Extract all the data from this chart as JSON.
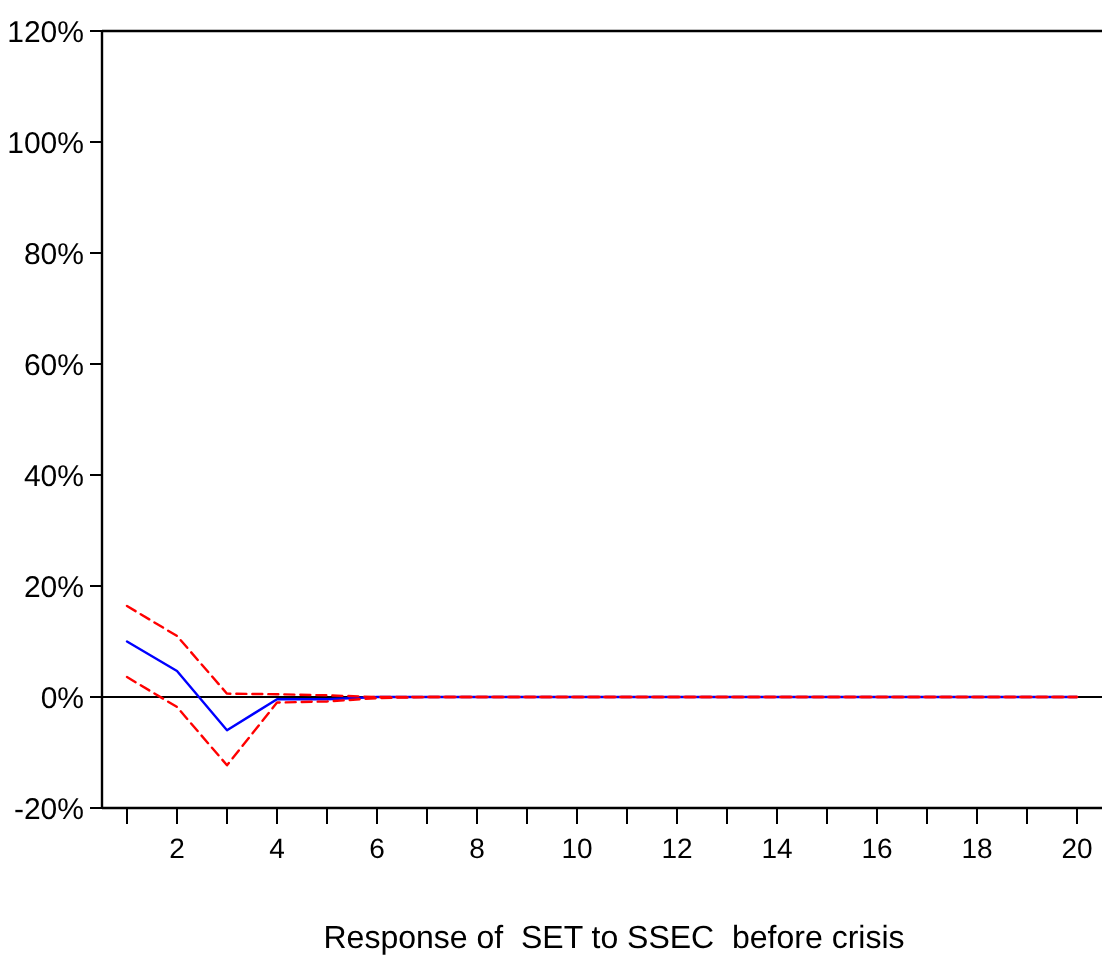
{
  "chart_data": {
    "type": "line",
    "title": "Response of  SET to SSEC  before crisis",
    "x": [
      1,
      2,
      3,
      4,
      5,
      6,
      7,
      8,
      9,
      10,
      11,
      12,
      13,
      14,
      15,
      16,
      17,
      18,
      19,
      20
    ],
    "xlim": [
      0.5,
      20.5
    ],
    "xticks": [
      {
        "value": 1,
        "label": null
      },
      2,
      {
        "value": 3,
        "label": null
      },
      4,
      {
        "value": 5,
        "label": null
      },
      6,
      {
        "value": 7,
        "label": null
      },
      8,
      {
        "value": 9,
        "label": null
      },
      10,
      {
        "value": 11,
        "label": null
      },
      12,
      {
        "value": 13,
        "label": null
      },
      14,
      {
        "value": 15,
        "label": null
      },
      16,
      {
        "value": 17,
        "label": null
      },
      18,
      {
        "value": 19,
        "label": null
      },
      20
    ],
    "ylim": [
      -20,
      120
    ],
    "yticks": [
      {
        "value": -20,
        "label": "-20%"
      },
      {
        "value": 0,
        "label": "0%"
      },
      {
        "value": 20,
        "label": "20%"
      },
      {
        "value": 40,
        "label": "40%"
      },
      {
        "value": 60,
        "label": "60%"
      },
      {
        "value": 80,
        "label": "80%"
      },
      {
        "value": 100,
        "label": "100%"
      },
      {
        "value": 120,
        "label": "120%"
      }
    ],
    "series": [
      {
        "color": "#0000ff",
        "line_style": "solid",
        "values": [
          10,
          4.7,
          -6,
          -0.4,
          -0.4,
          0,
          0,
          0,
          0,
          0,
          0,
          0,
          0,
          0,
          0,
          0,
          0,
          0,
          0,
          0
        ]
      },
      {
        "color": "#ff0000",
        "line_style": "dashed",
        "values": [
          16.4,
          11,
          0.6,
          0.5,
          0.3,
          0,
          0,
          0,
          0,
          0,
          0,
          0,
          0,
          0,
          0,
          0,
          0,
          0,
          0,
          0
        ]
      },
      {
        "color": "#ff0000",
        "line_style": "dashed",
        "values": [
          3.6,
          -1.8,
          -12.3,
          -1,
          -0.8,
          -0.2,
          0,
          0,
          0,
          0,
          0,
          0,
          0,
          0,
          0,
          0,
          0,
          0,
          0,
          0
        ]
      }
    ],
    "ref_lines": [
      {
        "axis": "y",
        "value": 0,
        "color": "#000000"
      }
    ]
  }
}
